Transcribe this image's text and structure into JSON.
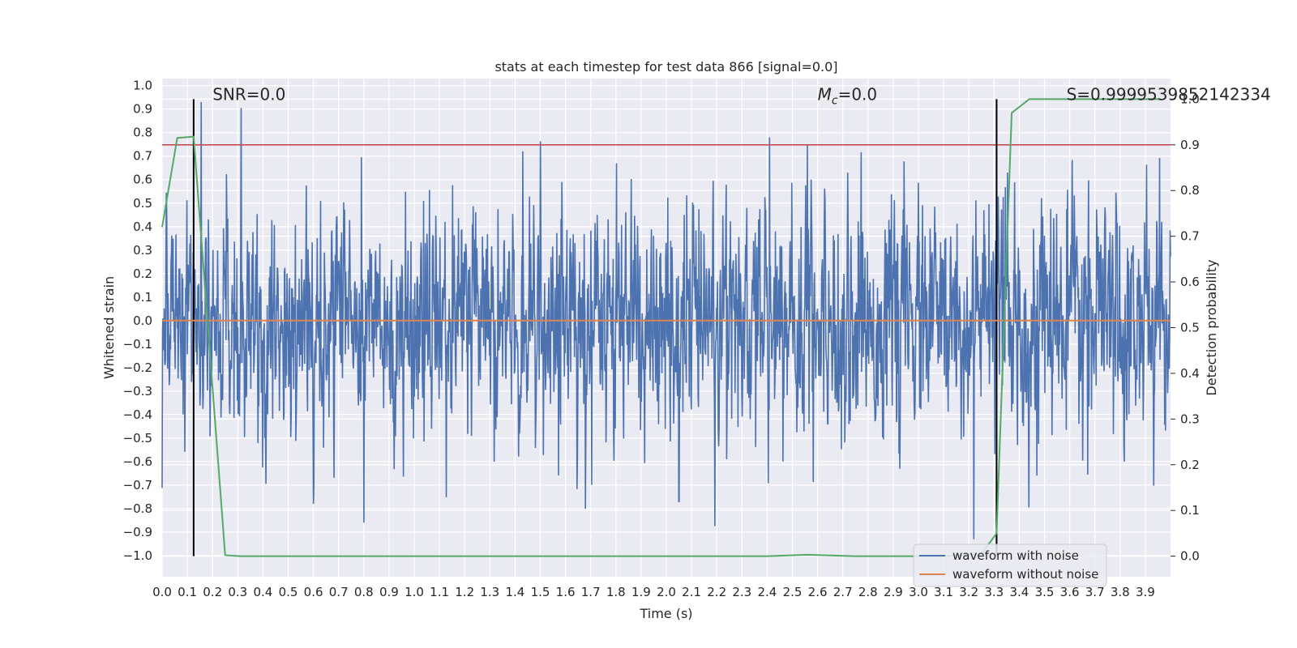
{
  "chart_data": {
    "type": "line",
    "title": "stats at each timestep for test data 866 [signal=0.0]",
    "xlabel": "Time (s)",
    "ylabel": "Whitened strain",
    "ylabel_right": "Detection probability",
    "xlim": [
      0.0,
      4.0
    ],
    "ylim": [
      -1.09,
      1.03
    ],
    "ylim_right": [
      -0.045,
      1.045
    ],
    "x_ticks": [
      0.0,
      0.1,
      0.2,
      0.3,
      0.4,
      0.5,
      0.6,
      0.7,
      0.8,
      0.9,
      1.0,
      1.1,
      1.2,
      1.3,
      1.4,
      1.5,
      1.6,
      1.7,
      1.8,
      1.9,
      2.0,
      2.1,
      2.2,
      2.3,
      2.4,
      2.5,
      2.6,
      2.7,
      2.8,
      2.9,
      3.0,
      3.1,
      3.2,
      3.3,
      3.4,
      3.5,
      3.6,
      3.7,
      3.8,
      3.9
    ],
    "x_tick_labels": [
      "0.0",
      "0.1",
      "0.2",
      "0.3",
      "0.4",
      "0.5",
      "0.6",
      "0.7",
      "0.8",
      "0.9",
      "1.0",
      "1.1",
      "1.2",
      "1.3",
      "1.4",
      "1.5",
      "1.6",
      "1.7",
      "1.8",
      "1.9",
      "2.0",
      "2.1",
      "2.2",
      "2.3",
      "2.4",
      "2.5",
      "2.6",
      "2.7",
      "2.8",
      "2.9",
      "3.0",
      "3.1",
      "3.2",
      "3.3",
      "3.4",
      "3.5",
      "3.6",
      "3.7",
      "3.8",
      "3.9"
    ],
    "y_ticks": [
      -1.0,
      -0.9,
      -0.8,
      -0.7,
      -0.6,
      -0.5,
      -0.4,
      -0.3,
      -0.2,
      -0.1,
      0.0,
      0.1,
      0.2,
      0.3,
      0.4,
      0.5,
      0.6,
      0.7,
      0.8,
      0.9,
      1.0
    ],
    "y_tick_labels": [
      "−1.0",
      "−0.9",
      "−0.8",
      "−0.7",
      "−0.6",
      "−0.5",
      "−0.4",
      "−0.3",
      "−0.2",
      "−0.1",
      "0.0",
      "0.1",
      "0.2",
      "0.3",
      "0.4",
      "0.5",
      "0.6",
      "0.7",
      "0.8",
      "0.9",
      "1.0"
    ],
    "y_ticks_right": [
      0.0,
      0.1,
      0.2,
      0.3,
      0.4,
      0.5,
      0.6,
      0.7,
      0.8,
      0.9,
      1.0
    ],
    "y_tick_labels_right": [
      "0.0",
      "0.1",
      "0.2",
      "0.3",
      "0.4",
      "0.5",
      "0.6",
      "0.7",
      "0.8",
      "0.9",
      "1.0"
    ],
    "grid": true,
    "legend_position": "lower-right",
    "series": [
      {
        "name": "waveform with noise",
        "color": "#4c72b0",
        "noise_std": 0.24,
        "peaks": [
          [
            0.155,
            0.93
          ],
          [
            2.41,
            0.78
          ],
          [
            2.56,
            0.75
          ],
          [
            1.43,
            0.72
          ],
          [
            0.8,
            -0.86
          ],
          [
            3.22,
            -0.93
          ],
          [
            0.6,
            -0.78
          ],
          [
            2.05,
            -0.77
          ]
        ]
      },
      {
        "name": "waveform without noise",
        "color": "#dd8452",
        "x": [
          0.0,
          4.0
        ],
        "y": [
          0.0,
          0.0
        ]
      },
      {
        "name": "detection probability",
        "color": "#55a868",
        "axis": "right",
        "x": [
          0.0,
          0.06,
          0.125,
          0.25,
          0.31,
          2.0,
          2.4,
          2.56,
          2.75,
          3.0,
          3.1,
          3.25,
          3.31,
          3.37,
          3.44,
          3.96
        ],
        "y": [
          0.72,
          0.915,
          0.918,
          0.002,
          0.0,
          0.0,
          0.0,
          0.003,
          0.0,
          0.0,
          0.0,
          0.005,
          0.05,
          0.97,
          1.0,
          1.0
        ]
      }
    ],
    "reference_lines": [
      {
        "type": "horizontal",
        "axis": "right",
        "value": 0.9,
        "color": "#c44e52"
      },
      {
        "type": "vertical",
        "value": 0.125,
        "color": "#000000"
      },
      {
        "type": "vertical",
        "value": 3.31,
        "color": "#000000"
      }
    ],
    "annotations": [
      {
        "text": "SNR=0.0",
        "x": 0.2,
        "y": 0.96
      },
      {
        "text": "=0.0",
        "prefix_symbol": "M",
        "prefix_subscript": "c",
        "x": 2.6,
        "y": 0.96
      },
      {
        "text": "S=0.9999539852142334",
        "x": 3.6,
        "y": 0.96
      }
    ]
  }
}
